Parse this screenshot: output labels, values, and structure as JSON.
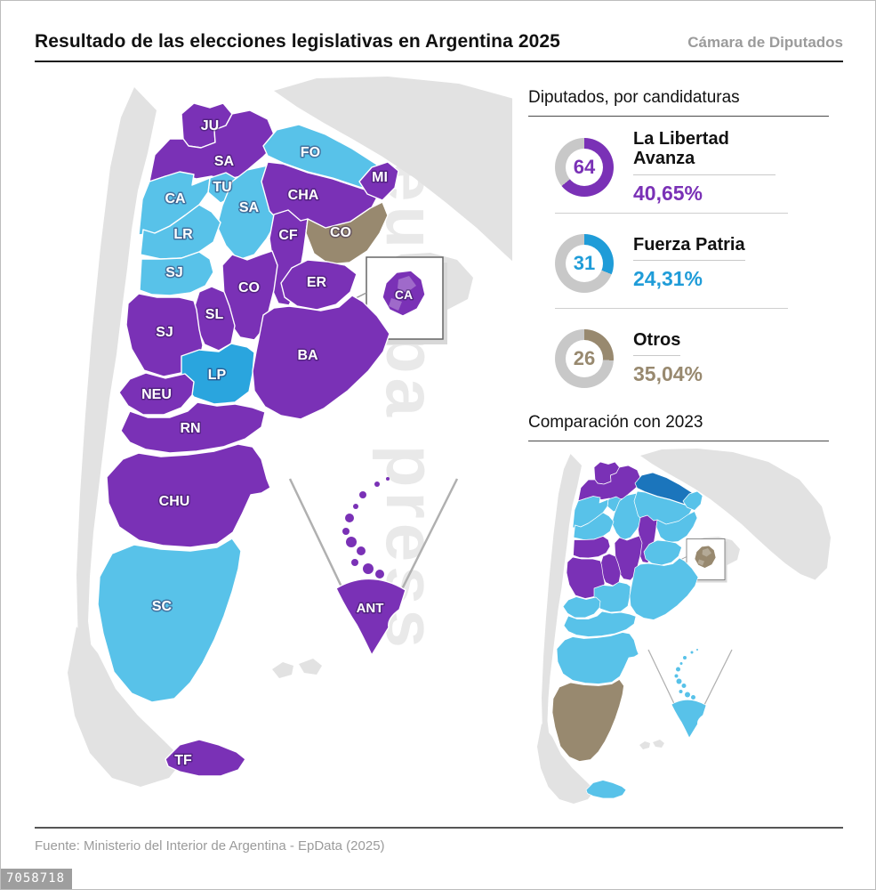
{
  "header": {
    "title": "Resultado de las elecciones legislativas en Argentina 2025",
    "subtitle": "Cámara de Diputados"
  },
  "palette": {
    "purple": "#7a31b6",
    "blue_light": "#58c2e9",
    "blue_medium": "#2aa5de",
    "blue_dark": "#1b75bc",
    "blue_donut": "#1f9cd8",
    "taupe": "#98896f",
    "donut_rest": "#c8c8c8",
    "neighbor": "#e2e2e2",
    "caba_patch": "rgba(255,255,255,0.28)"
  },
  "seats_panel": {
    "title": "Diputados, por candidaturas",
    "parties": [
      {
        "name": "La Libertad Avanza",
        "seats": 64,
        "percent": "40,65%",
        "color_key": "purple"
      },
      {
        "name": "Fuerza Patria",
        "seats": 31,
        "percent": "24,31%",
        "color_key": "blue_donut"
      },
      {
        "name": "Otros",
        "seats": 26,
        "percent": "35,04%",
        "color_key": "taupe"
      }
    ]
  },
  "comparison": {
    "title": "Comparación con 2023"
  },
  "map": {
    "provinces": [
      {
        "id": "JU",
        "label": "JU",
        "c2025": "purple",
        "c2023": "purple"
      },
      {
        "id": "SA",
        "label": "SA",
        "c2025": "purple",
        "c2023": "purple"
      },
      {
        "id": "FO",
        "label": "FO",
        "c2025": "blue_light",
        "c2023": "blue_dark"
      },
      {
        "id": "TU",
        "label": "TU",
        "c2025": "blue_light",
        "c2023": "blue_light"
      },
      {
        "id": "CA",
        "label": "CA",
        "c2025": "blue_light",
        "c2023": "blue_light"
      },
      {
        "id": "SA2",
        "label": "SA",
        "c2025": "blue_light",
        "c2023": "blue_light"
      },
      {
        "id": "CHA",
        "label": "CHA",
        "c2025": "purple",
        "c2023": "blue_light"
      },
      {
        "id": "MI",
        "label": "MI",
        "c2025": "purple",
        "c2023": "blue_light"
      },
      {
        "id": "LR",
        "label": "LR",
        "c2025": "blue_light",
        "c2023": "blue_light"
      },
      {
        "id": "CF",
        "label": "CF",
        "c2025": "purple",
        "c2023": "purple"
      },
      {
        "id": "CO",
        "label": "CO",
        "c2025": "taupe",
        "c2023": "blue_light"
      },
      {
        "id": "SJ",
        "label": "SJ",
        "c2025": "blue_light",
        "c2023": "purple"
      },
      {
        "id": "CO2",
        "label": "CO",
        "c2025": "purple",
        "c2023": "purple"
      },
      {
        "id": "ER",
        "label": "ER",
        "c2025": "purple",
        "c2023": "blue_light"
      },
      {
        "id": "SL",
        "label": "SL",
        "c2025": "purple",
        "c2023": "purple"
      },
      {
        "id": "SJ2",
        "label": "SJ",
        "c2025": "purple",
        "c2023": "purple"
      },
      {
        "id": "LP",
        "label": "LP",
        "c2025": "blue_medium",
        "c2023": "blue_light"
      },
      {
        "id": "BA",
        "label": "BA",
        "c2025": "purple",
        "c2023": "blue_light"
      },
      {
        "id": "NEU",
        "label": "NEU",
        "c2025": "purple",
        "c2023": "blue_light"
      },
      {
        "id": "RN",
        "label": "RN",
        "c2025": "purple",
        "c2023": "blue_light"
      },
      {
        "id": "CHU",
        "label": "CHU",
        "c2025": "purple",
        "c2023": "blue_light"
      },
      {
        "id": "SC",
        "label": "SC",
        "c2025": "blue_light",
        "c2023": "taupe"
      },
      {
        "id": "TF",
        "label": "TF",
        "c2025": "purple",
        "c2023": "blue_light"
      },
      {
        "id": "CAB",
        "label": "CA",
        "c2025": "purple",
        "c2023": "taupe"
      },
      {
        "id": "ANT",
        "label": "ANT",
        "c2025": "purple",
        "c2023": "blue_light"
      }
    ]
  },
  "chart_data": [
    {
      "type": "pie",
      "title": "Diputados, por candidaturas",
      "series": [
        {
          "name": "La Libertad Avanza",
          "seats": 64,
          "vote_percent": 40.65
        },
        {
          "name": "Fuerza Patria",
          "seats": 31,
          "vote_percent": 24.31
        },
        {
          "name": "Otros",
          "seats": 26,
          "vote_percent": 35.04
        }
      ],
      "legend_position": "right",
      "note": "donut fill equals seat number read as percent, remainder gray"
    },
    {
      "type": "heatmap",
      "title": "Resultado de las elecciones legislativas en Argentina 2025",
      "categories": [
        "JU",
        "SA",
        "FO",
        "TU",
        "CA",
        "SA (Santiago)",
        "CHA",
        "MI",
        "LR",
        "CF",
        "CO (Corrientes)",
        "SJ",
        "CO (Córdoba)",
        "ER",
        "SL",
        "SJ (Mendoza)",
        "LP",
        "BA",
        "NEU",
        "RN",
        "CHU",
        "SC",
        "TF",
        "CA (CABA)",
        "ANT"
      ],
      "values": [
        "La Libertad Avanza",
        "La Libertad Avanza",
        "Fuerza Patria",
        "Fuerza Patria",
        "Fuerza Patria",
        "Fuerza Patria",
        "La Libertad Avanza",
        "La Libertad Avanza",
        "Fuerza Patria",
        "La Libertad Avanza",
        "Otros",
        "Fuerza Patria",
        "La Libertad Avanza",
        "La Libertad Avanza",
        "La Libertad Avanza",
        "La Libertad Avanza",
        "Fuerza Patria",
        "La Libertad Avanza",
        "La Libertad Avanza",
        "La Libertad Avanza",
        "La Libertad Avanza",
        "Fuerza Patria",
        "La Libertad Avanza",
        "La Libertad Avanza",
        "La Libertad Avanza"
      ]
    },
    {
      "type": "heatmap",
      "title": "Comparación con 2023",
      "categories": [
        "JU",
        "SA",
        "FO",
        "TU",
        "CA",
        "SA (Santiago)",
        "CHA",
        "MI",
        "LR",
        "CF",
        "CO (Corrientes)",
        "SJ",
        "CO (Córdoba)",
        "ER",
        "SL",
        "SJ (Mendoza)",
        "LP",
        "BA",
        "NEU",
        "RN",
        "CHU",
        "SC",
        "TF",
        "CA (CABA)",
        "ANT"
      ],
      "values": [
        "purple",
        "purple",
        "dark-blue",
        "light-blue",
        "light-blue",
        "light-blue",
        "light-blue",
        "light-blue",
        "light-blue",
        "purple",
        "light-blue",
        "purple",
        "purple",
        "light-blue",
        "purple",
        "purple",
        "light-blue",
        "light-blue",
        "light-blue",
        "light-blue",
        "light-blue",
        "taupe",
        "light-blue",
        "taupe",
        "light-blue"
      ]
    }
  ],
  "footer": {
    "source": "Fuente: Ministerio del Interior de Argentina - EpData (2025)"
  },
  "watermark": "europa press",
  "image_id": "7058718"
}
